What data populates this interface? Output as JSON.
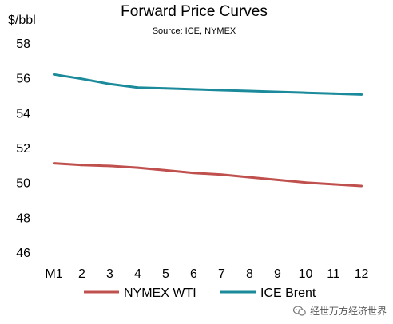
{
  "chart_data": {
    "type": "line",
    "title": "Forward Price Curves",
    "subtitle": "Source: ICE, NYMEX",
    "ylabel": "$/bbl",
    "xlabel": "",
    "categories": [
      "M1",
      "2",
      "3",
      "4",
      "5",
      "6",
      "7",
      "8",
      "9",
      "10",
      "11",
      "12"
    ],
    "ylim": [
      46,
      58
    ],
    "yticks": [
      46,
      48,
      50,
      52,
      54,
      56,
      58
    ],
    "grid": false,
    "legend_position": "bottom",
    "series": [
      {
        "name": "NYMEX WTI",
        "color": "#C0504D",
        "values": [
          51.1,
          51.0,
          50.95,
          50.85,
          50.7,
          50.55,
          50.45,
          50.3,
          50.15,
          50.0,
          49.9,
          49.8
        ]
      },
      {
        "name": "ICE Brent",
        "color": "#1B8A9A",
        "values": [
          56.2,
          55.95,
          55.65,
          55.45,
          55.4,
          55.35,
          55.3,
          55.25,
          55.2,
          55.15,
          55.1,
          55.05
        ]
      }
    ]
  },
  "watermark": {
    "text": "经世万方经济世界",
    "icon": "wechat-bubble-icon"
  }
}
